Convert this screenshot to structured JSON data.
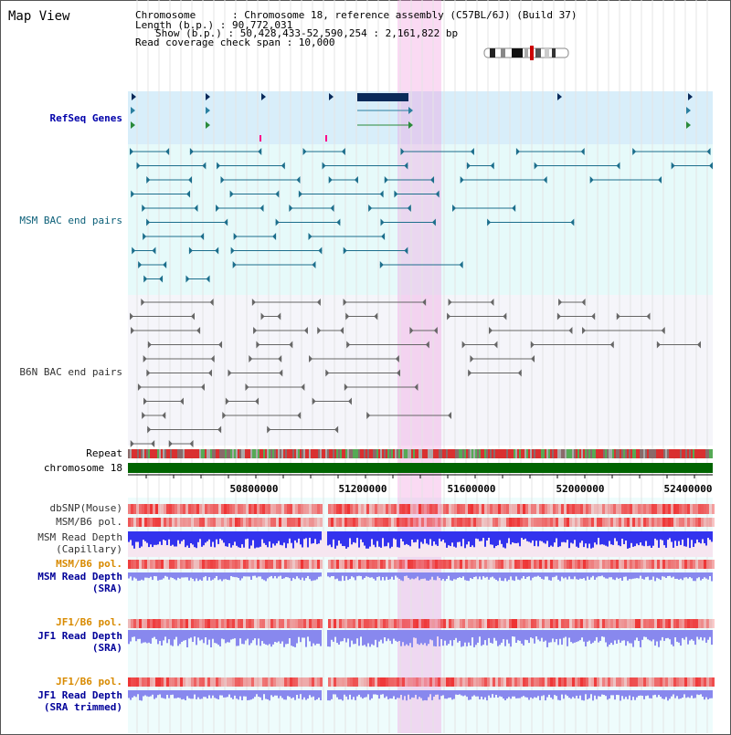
{
  "title": "Map View",
  "info": {
    "chromosome": "Chromosome      : Chromosome 18, reference assembly (C57BL/6J) (Build 37)",
    "length": "Length (b.p.) : 90,772,031",
    "show": "Show (b.p.) : 50,428,433-52,590,254 : 2,161,822 bp",
    "read_coverage": "Read coverage check span : 10,000"
  },
  "tracks": {
    "refseq": "RefSeq Genes",
    "msm_bac": "MSM BAC end pairs",
    "b6n_bac": "B6N BAC end pairs",
    "repeat": "Repeat",
    "chromosome": "chromosome 18",
    "dbsnp": "dbSNP(Mouse)",
    "msm_b6_pol": "MSM/B6 pol.",
    "msm_depth_cap_1": "MSM Read Depth",
    "msm_depth_cap_2": "(Capillary)",
    "msm_b6_pol_2": "MSM/B6 pol.",
    "msm_depth_sra_1": "MSM Read Depth",
    "msm_depth_sra_2": "(SRA)",
    "jf1_b6_pol": "JF1/B6 pol.",
    "jf1_depth_sra_1": "JF1 Read Depth",
    "jf1_depth_sra_2": "(SRA)",
    "jf1_b6_pol_2": "JF1/B6 pol.",
    "jf1_depth_trim_1": "JF1 Read Depth",
    "jf1_depth_trim_2": "(SRA trimmed)"
  },
  "axis_ticks": [
    "50800000",
    "51200000",
    "51600000",
    "52000000",
    "52400000"
  ],
  "colors": {
    "refseq_bg": "#d8eefa",
    "msm_bg": "#e6fafa",
    "b6n_bg": "#f5f5fa",
    "highlight": "#f7cdee",
    "chromosome_bar": "#006400",
    "depth_blue": "#3333ee",
    "depth_lilac": "#8888ee",
    "pol_red": "#ee3333",
    "gene_fill": "#0a2a5a",
    "bac_teal": "#1c6e8c",
    "bac_gray": "#666666"
  }
}
